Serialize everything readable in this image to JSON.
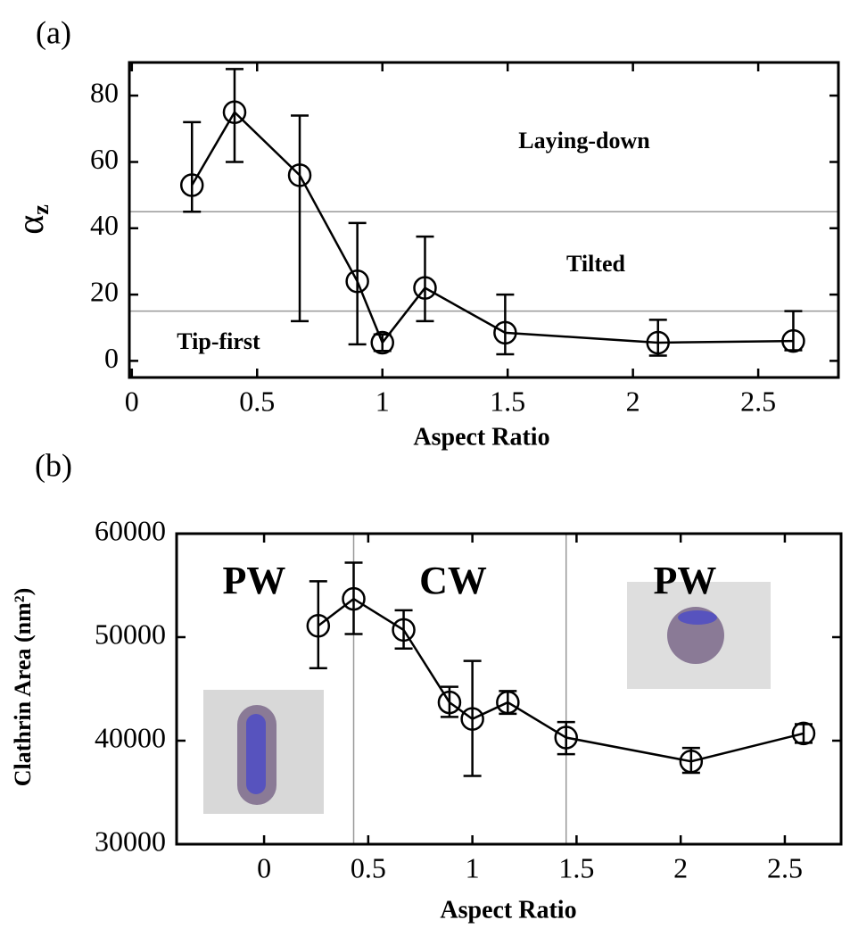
{
  "chart_data": [
    {
      "type": "line",
      "panel_label": "(a)",
      "xlabel": "Aspect Ratio",
      "ylabel": "α",
      "ylabel_subscript": "z",
      "xlim": [
        -0.01,
        2.82
      ],
      "xticks": [
        0,
        0.5,
        1,
        1.5,
        2,
        2.5
      ],
      "ylim": [
        -5,
        90
      ],
      "yticks": [
        0,
        20,
        40,
        60,
        80
      ],
      "hlines": [
        15,
        45
      ],
      "annotations": [
        "Laying-down",
        "Tilted",
        "Tip-first"
      ],
      "x": [
        0.24,
        0.41,
        0.67,
        0.9,
        1.0,
        1.17,
        1.49,
        2.1,
        2.64
      ],
      "series": [
        {
          "color": "#000000",
          "values": [
            53,
            75,
            56,
            24,
            5.5,
            22,
            8.5,
            5.5,
            6
          ],
          "error_lower": [
            45,
            60,
            12,
            5,
            3,
            12,
            2,
            1.6,
            3.2
          ],
          "error_upper": [
            72,
            88,
            74,
            41.6,
            8,
            37.5,
            20,
            12.4,
            15
          ]
        }
      ]
    },
    {
      "type": "line",
      "panel_label": "(b)",
      "xlabel": "Aspect Ratio",
      "ylabel": "Clathrin Area (nm²)",
      "xlim": [
        -0.42,
        2.77
      ],
      "xticks": [
        0,
        0.5,
        1,
        1.5,
        2,
        2.5
      ],
      "ylim": [
        30000,
        60000
      ],
      "yticks": [
        30000,
        40000,
        50000,
        60000
      ],
      "vlines": [
        0.43,
        1.45
      ],
      "annotations": [
        "PW",
        "CW",
        "PW"
      ],
      "x": [
        0.26,
        0.43,
        0.67,
        0.89,
        1.0,
        1.17,
        1.45,
        2.05,
        2.59
      ],
      "series": [
        {
          "color": "#000000",
          "values": [
            51100,
            53700,
            50700,
            43700,
            42100,
            43700,
            40300,
            38000,
            40700
          ],
          "error_lower": [
            47000,
            50300,
            48900,
            42300,
            36600,
            42600,
            38700,
            36900,
            39800
          ],
          "error_upper": [
            55400,
            57200,
            52600,
            45200,
            47700,
            44800,
            41800,
            39300,
            41600
          ]
        }
      ]
    }
  ]
}
